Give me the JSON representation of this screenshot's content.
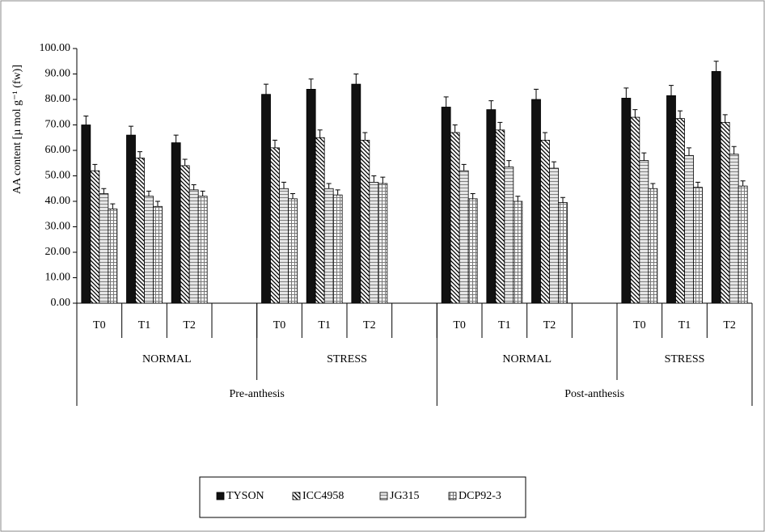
{
  "chart_data": {
    "type": "bar",
    "ylabel": "AA content [µ mol g⁻¹ (fw)]",
    "categories": [
      "T0",
      "T1",
      "T2",
      null,
      "T0",
      "T1",
      "T2",
      null,
      "T0",
      "T1",
      "T2",
      null,
      "T0",
      "T1",
      "T2"
    ],
    "group_labels": [
      "NORMAL",
      "STRESS",
      "NORMAL",
      "STRESS"
    ],
    "phase_labels": [
      "Pre-anthesis",
      "Post-anthesis"
    ],
    "series": [
      {
        "name": "TYSON",
        "color": "#111111",
        "pattern": "solid",
        "values": [
          70,
          66,
          63,
          null,
          82,
          84,
          86,
          null,
          77,
          76,
          80,
          null,
          80.5,
          81.5,
          91
        ],
        "errors": [
          3.5,
          3.5,
          3,
          null,
          4,
          4,
          4,
          null,
          4,
          3.5,
          4,
          null,
          4,
          4,
          4
        ]
      },
      {
        "name": "ICC4958",
        "color": "#000000",
        "pattern": "diagonal",
        "values": [
          52,
          57,
          54,
          null,
          61,
          65,
          64,
          null,
          67,
          68,
          64,
          null,
          73,
          72.5,
          71
        ],
        "errors": [
          2.5,
          2.5,
          2.5,
          null,
          3,
          3,
          3,
          null,
          3,
          3,
          3,
          null,
          3,
          3,
          3
        ]
      },
      {
        "name": "JG315",
        "color": "#d9d9d9",
        "pattern": "horizontal",
        "values": [
          43,
          42,
          44.5,
          null,
          45,
          45,
          47.5,
          null,
          52,
          53.5,
          53,
          null,
          56,
          58,
          58.5
        ],
        "errors": [
          2,
          2,
          2,
          null,
          2.5,
          2,
          2.5,
          null,
          2.5,
          2.5,
          2.5,
          null,
          3,
          3,
          3
        ]
      },
      {
        "name": "DCP92-3",
        "color": "#a6a6a6",
        "pattern": "grid",
        "values": [
          37,
          38,
          42,
          null,
          41,
          42.5,
          47,
          null,
          41,
          40,
          39.5,
          null,
          45,
          45.5,
          46
        ],
        "errors": [
          2,
          2,
          2,
          null,
          2,
          2,
          2.5,
          null,
          2,
          2,
          2,
          null,
          2,
          2,
          2
        ]
      }
    ],
    "ylim": [
      0,
      100
    ],
    "yticks": [
      {
        "value": 0,
        "label": "0.00"
      },
      {
        "value": 10,
        "label": "10.00"
      },
      {
        "value": 20,
        "label": "20.00"
      },
      {
        "value": 30,
        "label": "30.00"
      },
      {
        "value": 40,
        "label": "40.00"
      },
      {
        "value": 50,
        "label": "50.00"
      },
      {
        "value": 60,
        "label": "60.00"
      },
      {
        "value": 70,
        "label": "70.00"
      },
      {
        "value": 80,
        "label": "80.00"
      },
      {
        "value": 90,
        "label": "90.00"
      },
      {
        "value": 100,
        "label": "100.00"
      }
    ],
    "legend": "bottom"
  }
}
